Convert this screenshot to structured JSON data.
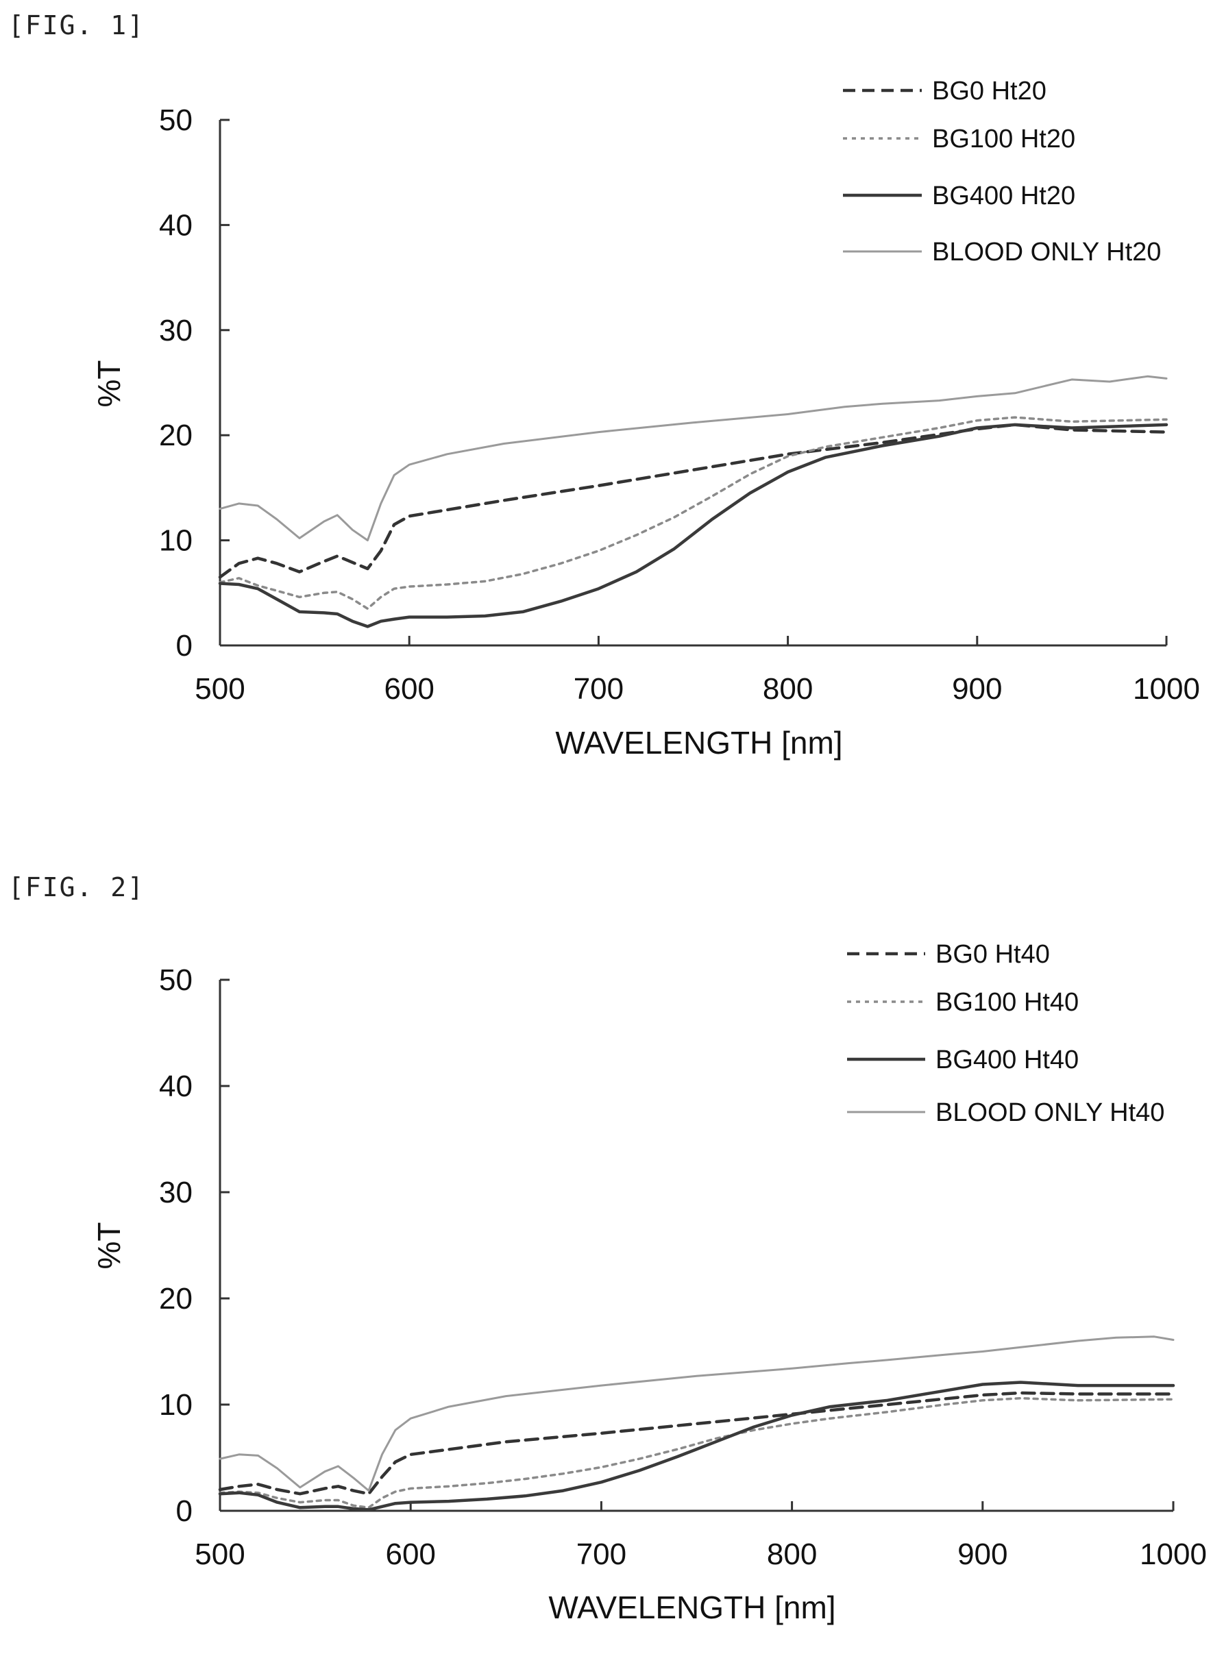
{
  "figures": [
    {
      "label": "[FIG. 1]"
    },
    {
      "label": "[FIG. 2]"
    }
  ],
  "colors": {
    "BG0": "#333333",
    "BG100": "#8a8a8a",
    "BG400": "#3a3a3a",
    "BLOOD": "#9a9a9a"
  },
  "chart_data": [
    {
      "type": "line",
      "title": "",
      "xlabel": "WAVELENGTH [nm]",
      "ylabel": "%T",
      "xlim": [
        500,
        1000
      ],
      "ylim": [
        0,
        50
      ],
      "xticks": [
        500,
        600,
        700,
        800,
        900,
        1000
      ],
      "yticks": [
        0,
        10,
        20,
        30,
        40,
        50
      ],
      "legend_position": "top-right",
      "series": [
        {
          "name": "BG0 Ht20",
          "style": "dashed",
          "x": [
            500,
            510,
            520,
            530,
            542,
            555,
            562,
            570,
            578,
            585,
            592,
            600,
            650,
            700,
            750,
            800,
            850,
            900,
            920,
            950,
            1000
          ],
          "y": [
            6.5,
            7.8,
            8.3,
            7.8,
            7.0,
            8.0,
            8.5,
            7.9,
            7.3,
            9.0,
            11.5,
            12.3,
            13.8,
            15.2,
            16.7,
            18.2,
            19.3,
            20.6,
            21.0,
            20.5,
            20.3
          ]
        },
        {
          "name": "BG100 Ht20",
          "style": "dotted",
          "x": [
            500,
            510,
            520,
            530,
            542,
            555,
            562,
            570,
            578,
            585,
            592,
            600,
            620,
            640,
            660,
            680,
            700,
            720,
            740,
            760,
            780,
            800,
            820,
            850,
            880,
            900,
            920,
            950,
            1000
          ],
          "y": [
            6.0,
            6.4,
            5.7,
            5.2,
            4.6,
            5.0,
            5.1,
            4.4,
            3.5,
            4.6,
            5.4,
            5.6,
            5.8,
            6.1,
            6.8,
            7.8,
            9.0,
            10.5,
            12.2,
            14.2,
            16.3,
            18.0,
            18.9,
            19.8,
            20.7,
            21.4,
            21.7,
            21.3,
            21.5
          ]
        },
        {
          "name": "BG400 Ht20",
          "style": "solid",
          "x": [
            500,
            510,
            520,
            530,
            542,
            555,
            562,
            570,
            578,
            585,
            592,
            600,
            620,
            640,
            660,
            680,
            700,
            720,
            740,
            760,
            780,
            800,
            820,
            850,
            880,
            900,
            920,
            950,
            1000
          ],
          "y": [
            5.9,
            5.8,
            5.4,
            4.4,
            3.2,
            3.1,
            3.0,
            2.3,
            1.8,
            2.3,
            2.5,
            2.7,
            2.7,
            2.8,
            3.2,
            4.2,
            5.4,
            7.0,
            9.2,
            12.0,
            14.5,
            16.5,
            17.9,
            19.0,
            19.9,
            20.7,
            21.0,
            20.7,
            21.0
          ]
        },
        {
          "name": "BLOOD ONLY  Ht20",
          "style": "solid-light",
          "x": [
            500,
            510,
            520,
            530,
            542,
            555,
            562,
            570,
            578,
            585,
            592,
            600,
            620,
            650,
            700,
            750,
            800,
            830,
            850,
            880,
            900,
            920,
            950,
            970,
            990,
            1000
          ],
          "y": [
            13.0,
            13.5,
            13.3,
            12.0,
            10.2,
            11.8,
            12.4,
            11.0,
            10.0,
            13.5,
            16.2,
            17.2,
            18.2,
            19.2,
            20.3,
            21.2,
            22.0,
            22.7,
            23.0,
            23.3,
            23.7,
            24.0,
            25.3,
            25.1,
            25.6,
            25.4
          ]
        }
      ]
    },
    {
      "type": "line",
      "title": "",
      "xlabel": "WAVELENGTH [nm]",
      "ylabel": "%T",
      "xlim": [
        500,
        1000
      ],
      "ylim": [
        0,
        50
      ],
      "xticks": [
        500,
        600,
        700,
        800,
        900,
        1000
      ],
      "yticks": [
        0,
        10,
        20,
        30,
        40,
        50
      ],
      "legend_position": "top-right",
      "series": [
        {
          "name": "BG0 Ht40",
          "style": "dashed",
          "x": [
            500,
            510,
            520,
            530,
            542,
            555,
            562,
            570,
            578,
            585,
            592,
            600,
            650,
            700,
            750,
            800,
            850,
            900,
            920,
            950,
            1000
          ],
          "y": [
            2.0,
            2.3,
            2.5,
            2.0,
            1.6,
            2.1,
            2.3,
            1.9,
            1.6,
            3.2,
            4.6,
            5.3,
            6.5,
            7.3,
            8.2,
            9.1,
            10.0,
            10.9,
            11.1,
            11.0,
            11.0
          ]
        },
        {
          "name": "BG100 Ht40",
          "style": "dotted",
          "x": [
            500,
            510,
            520,
            530,
            542,
            555,
            562,
            570,
            578,
            585,
            592,
            600,
            620,
            640,
            660,
            680,
            700,
            720,
            740,
            760,
            780,
            800,
            820,
            850,
            880,
            900,
            920,
            950,
            1000
          ],
          "y": [
            1.7,
            1.8,
            1.7,
            1.2,
            0.8,
            1.0,
            1.0,
            0.5,
            0.3,
            1.2,
            1.8,
            2.1,
            2.3,
            2.6,
            3.0,
            3.5,
            4.1,
            4.9,
            5.8,
            6.8,
            7.6,
            8.2,
            8.7,
            9.3,
            10.0,
            10.4,
            10.6,
            10.4,
            10.5
          ]
        },
        {
          "name": "BG400 Ht40",
          "style": "solid",
          "x": [
            500,
            510,
            520,
            530,
            542,
            555,
            562,
            570,
            578,
            585,
            592,
            600,
            620,
            640,
            660,
            680,
            700,
            720,
            740,
            760,
            780,
            800,
            820,
            850,
            880,
            900,
            920,
            950,
            1000
          ],
          "y": [
            1.6,
            1.7,
            1.5,
            0.8,
            0.3,
            0.4,
            0.4,
            0.2,
            0.1,
            0.4,
            0.7,
            0.8,
            0.9,
            1.1,
            1.4,
            1.9,
            2.7,
            3.8,
            5.1,
            6.5,
            7.9,
            9.0,
            9.8,
            10.4,
            11.3,
            11.9,
            12.1,
            11.8,
            11.8
          ]
        },
        {
          "name": "BLOOD ONLY Ht40",
          "style": "solid-light",
          "x": [
            500,
            510,
            520,
            530,
            542,
            555,
            562,
            570,
            578,
            585,
            592,
            600,
            620,
            650,
            700,
            750,
            800,
            830,
            850,
            880,
            900,
            920,
            950,
            970,
            990,
            1000
          ],
          "y": [
            4.9,
            5.3,
            5.2,
            4.0,
            2.2,
            3.7,
            4.2,
            3.1,
            1.9,
            5.3,
            7.6,
            8.7,
            9.8,
            10.8,
            11.8,
            12.7,
            13.4,
            13.9,
            14.2,
            14.7,
            15.0,
            15.4,
            16.0,
            16.3,
            16.4,
            16.1
          ]
        }
      ]
    }
  ]
}
